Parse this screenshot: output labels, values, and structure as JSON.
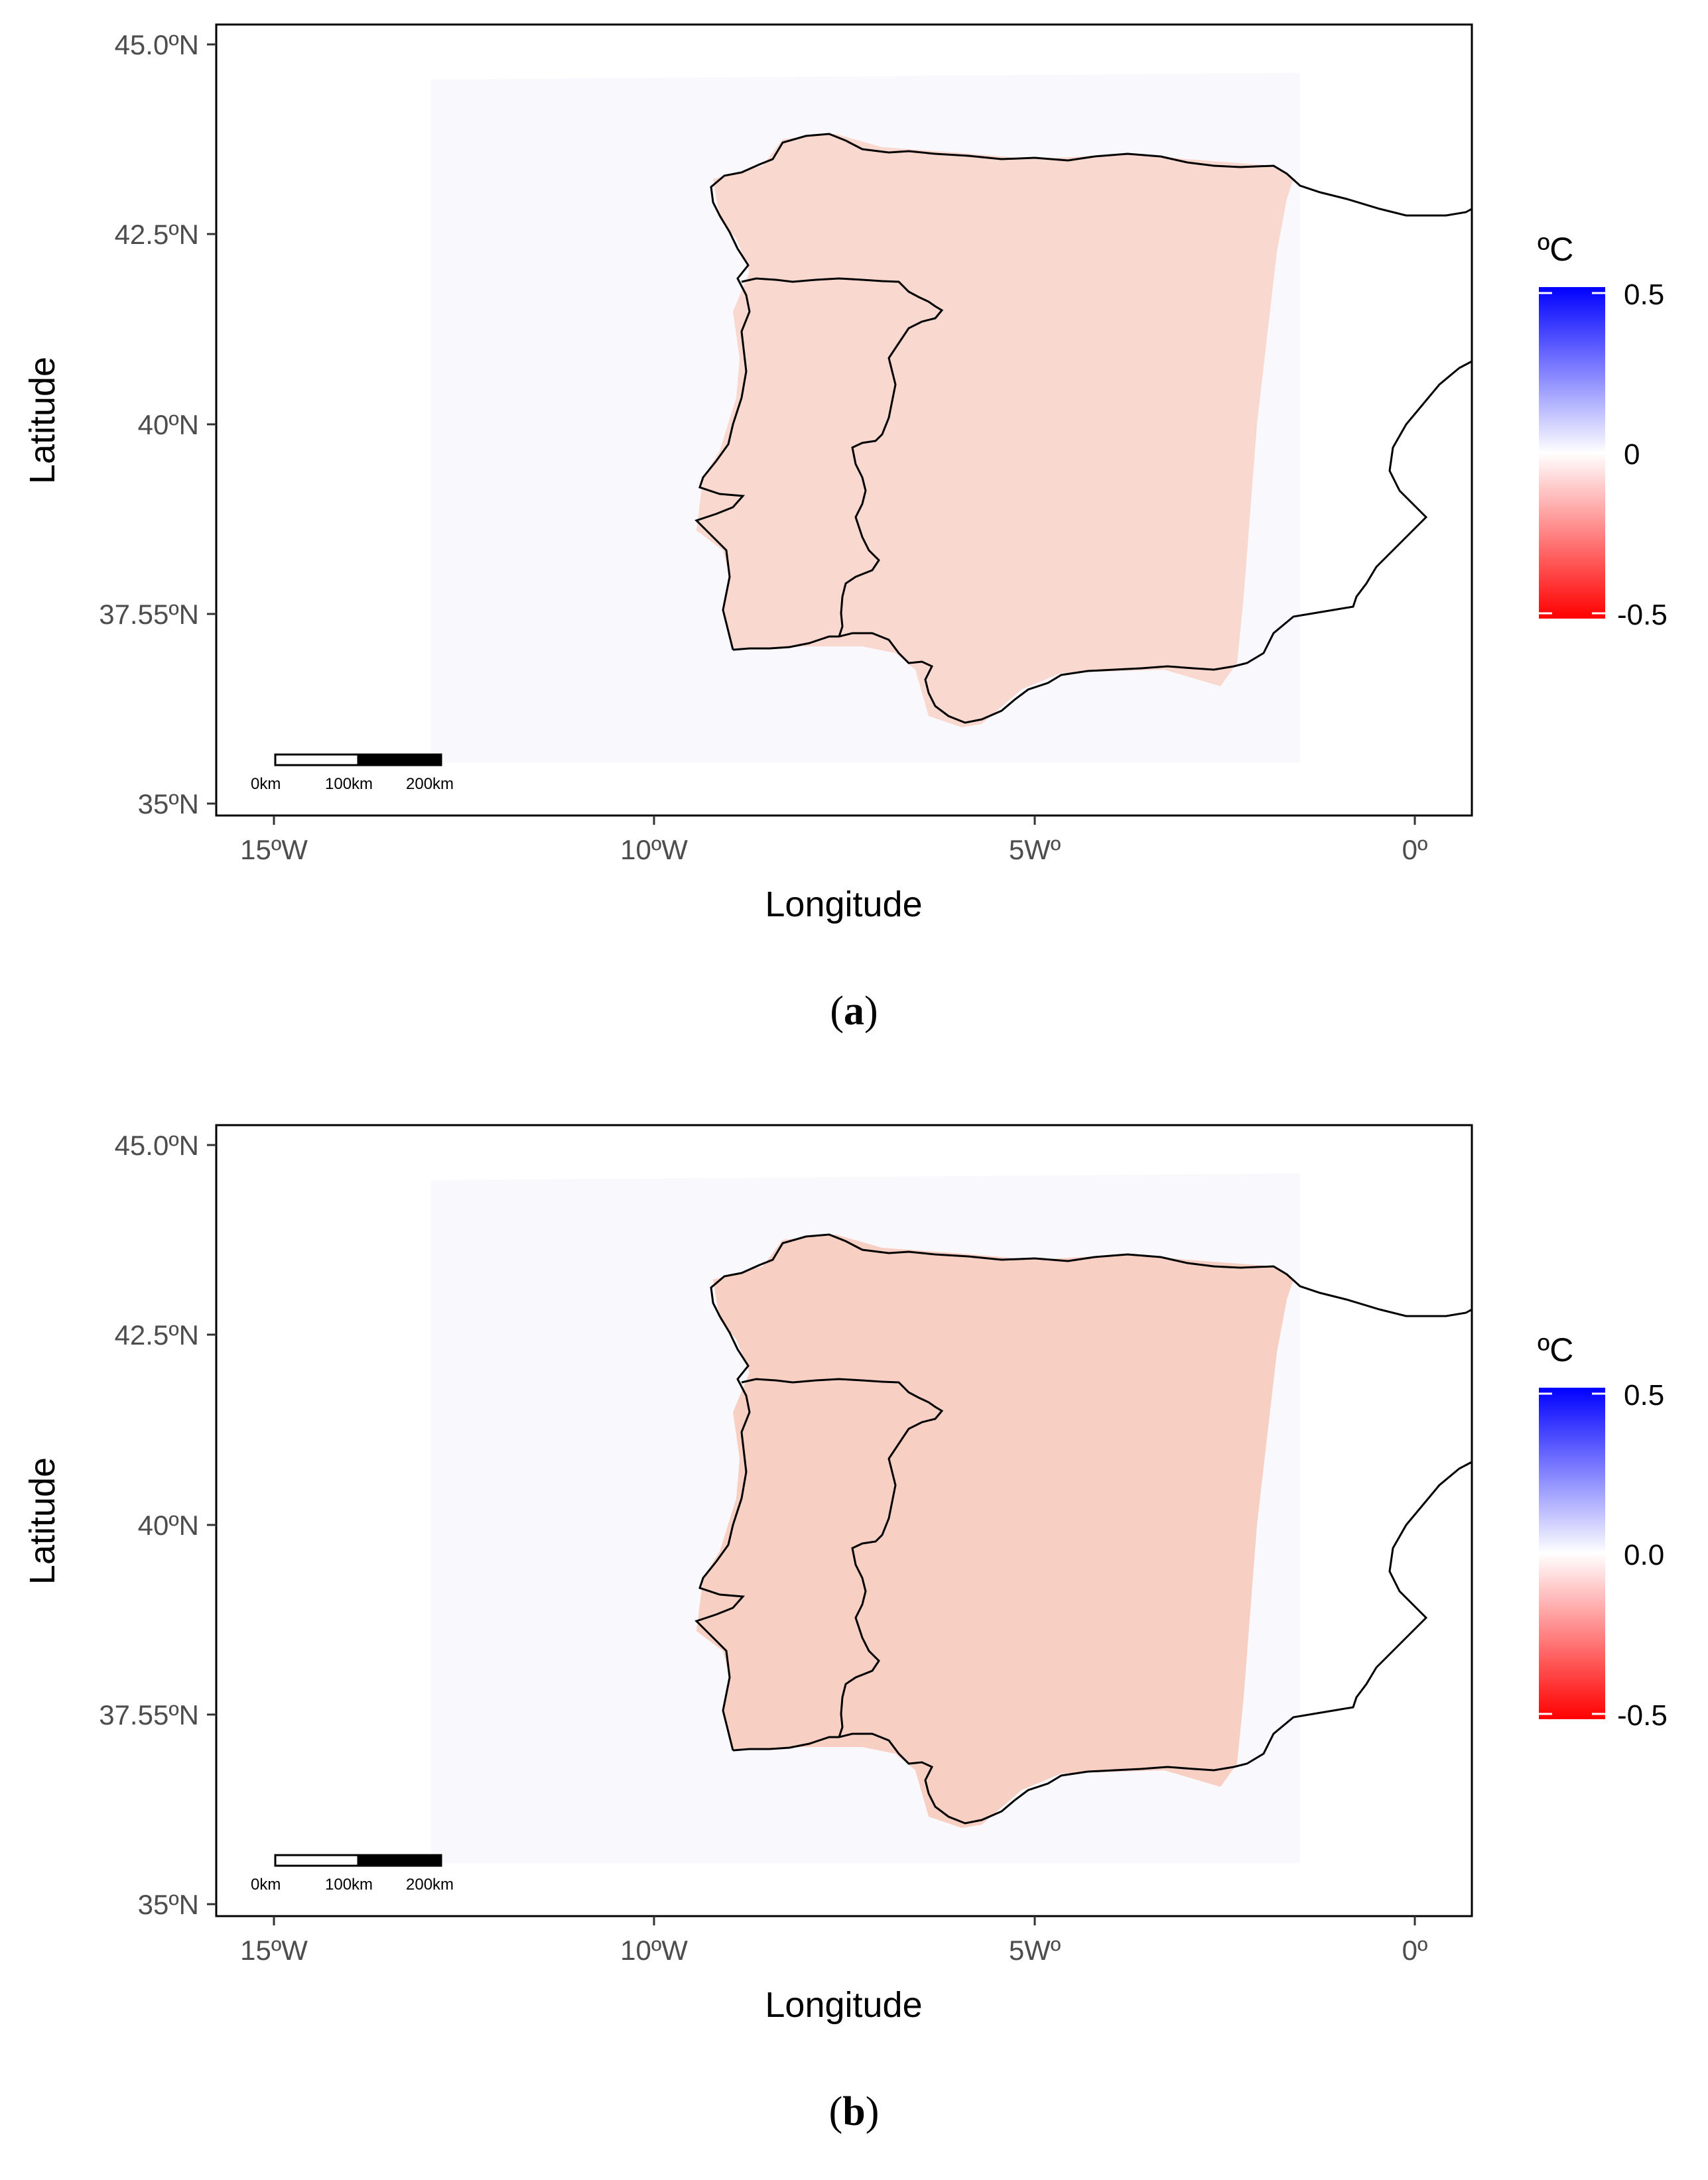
{
  "panels": [
    {
      "id": "a",
      "caption_letter": "a",
      "x_label": "Longitude",
      "y_label": "Latitude",
      "x_ticks": [
        "15ºW",
        "10ºW",
        "5Wº",
        "0º"
      ],
      "y_ticks": [
        "45.0ºN",
        "42.5ºN",
        "40ºN",
        "37.55ºN",
        "35ºN"
      ],
      "legend": {
        "title": "ºC",
        "labels": [
          "0.5",
          "0",
          "-0.5"
        ]
      },
      "scale_bar": {
        "labels": [
          "0km",
          "100km",
          "200km"
        ]
      },
      "fill_intensity": 0.15
    },
    {
      "id": "b",
      "caption_letter": "b",
      "x_label": "Longitude",
      "y_label": "Latitude",
      "x_ticks": [
        "15ºW",
        "10ºW",
        "5Wº",
        "0º"
      ],
      "y_ticks": [
        "45.0ºN",
        "42.5ºN",
        "40ºN",
        "37.55ºN",
        "35ºN"
      ],
      "legend": {
        "title": "ºC",
        "labels": [
          "0.5",
          "0.0",
          "-0.5"
        ]
      },
      "scale_bar": {
        "labels": [
          "0km",
          "100km",
          "200km"
        ]
      },
      "fill_intensity": 0.2
    }
  ],
  "colors": {
    "positive": "#0000ff",
    "zero": "#ffffff",
    "negative": "#ff0000",
    "anomaly_fill": "#f9d8cf",
    "ocean_tint": "#f6f5fb",
    "outline": "#000000"
  }
}
